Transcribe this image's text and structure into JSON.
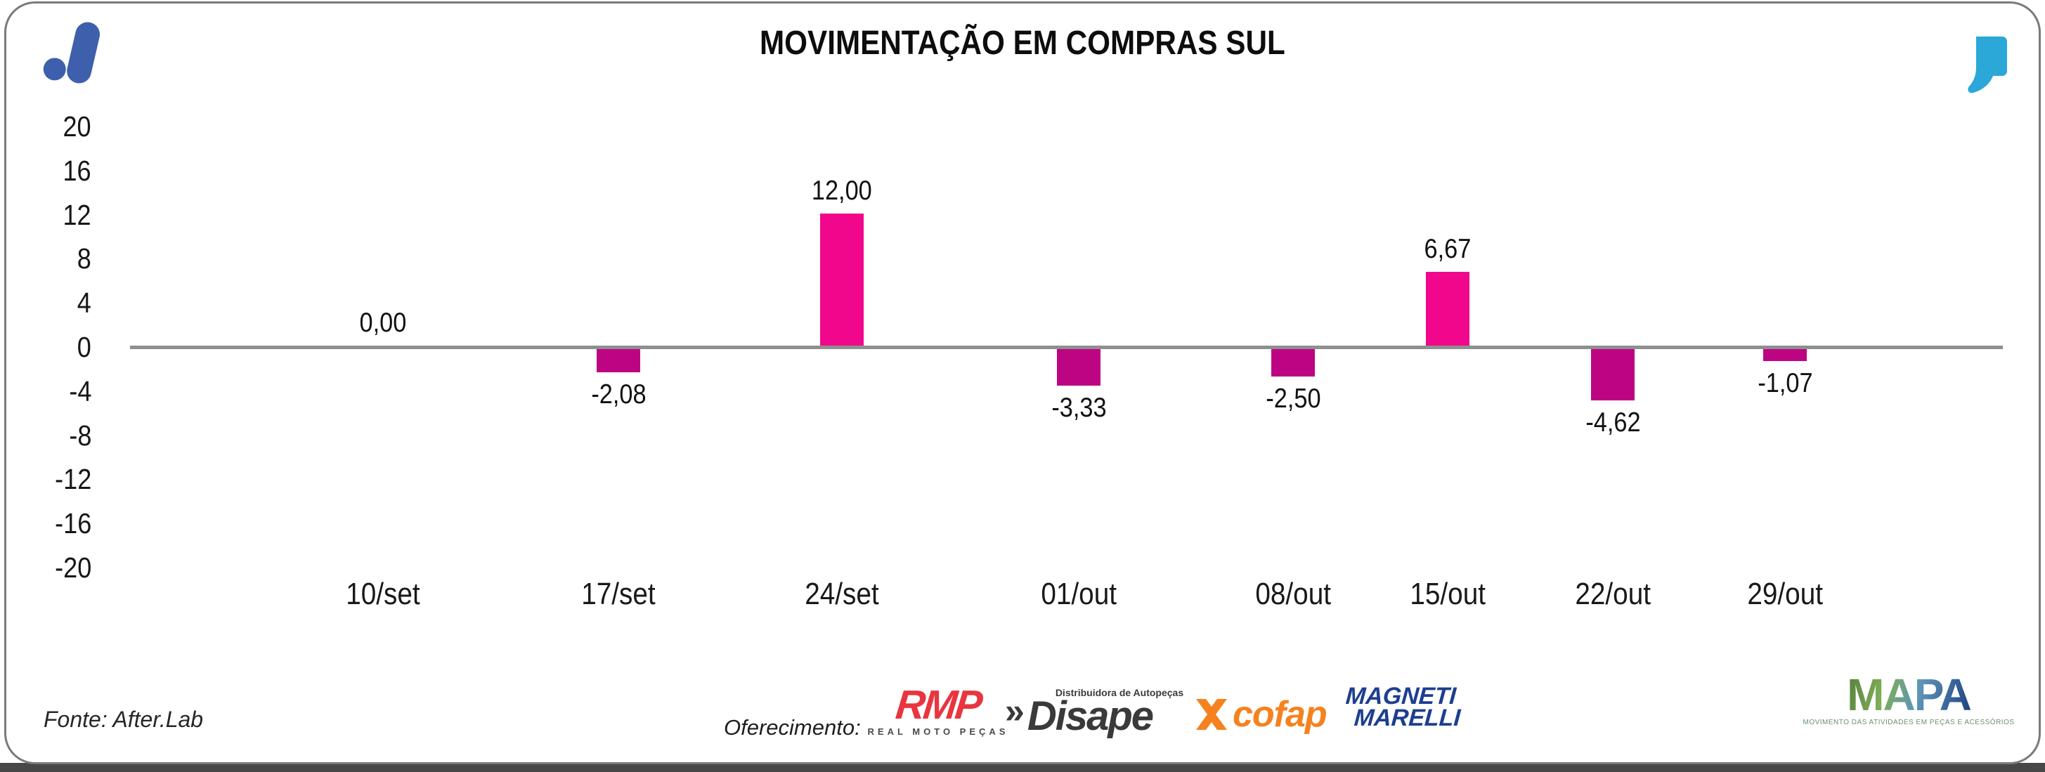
{
  "card": {
    "background": "#ffffff",
    "border_color": "#7a7a7a",
    "bottom_strip_color": "#474747"
  },
  "brand": {
    "afterlab_mark_color": "#3D5FAC",
    "quote_mark_color": "#2BA7D8"
  },
  "chart_data": {
    "type": "bar",
    "title": "MOVIMENTAÇÃO EM COMPRAS SUL",
    "categories": [
      "10/set",
      "17/set",
      "24/set",
      "01/out",
      "08/out",
      "15/out",
      "22/out",
      "29/out"
    ],
    "values": [
      0,
      -2.08,
      12,
      -3.33,
      -2.5,
      6.67,
      -4.62,
      -1.07
    ],
    "value_labels": [
      "0,00",
      "-2,08",
      "12,00",
      "-3,33",
      "-2,50",
      "6,67",
      "-4,62",
      "-1,07"
    ],
    "y_ticks": [
      20,
      16,
      12,
      8,
      4,
      0,
      -4,
      -8,
      -12,
      -16,
      -20
    ],
    "ylim": [
      -20,
      20
    ],
    "xlabel": "",
    "ylabel": "",
    "grid": false,
    "legend_position": "none",
    "bar_color_positive": "#F0078C",
    "bar_color_negative": "#BD0583",
    "axis_line_color": "#8F8F8F",
    "label_color": "#111111"
  },
  "footer": {
    "fonte": "Fonte: After.Lab",
    "oferecimento_label": "Oferecimento:",
    "logos": {
      "rmp": {
        "text": "RMP",
        "subtext": "REAL MOTO PEÇAS",
        "color": "#E8353F"
      },
      "disape": {
        "mark": "»",
        "text": "Disape",
        "subtext": "Distribuidora de Autopeças",
        "color": "#3A3A3A"
      },
      "cofap": {
        "text": "cofap",
        "color": "#F5821F"
      },
      "magneti": {
        "line1": "MAGNETI",
        "line2": "MARELLI",
        "color": "#1D3E90"
      },
      "mapa": {
        "text": "MAPA",
        "tagline": "MOVIMENTO DAS ATIVIDADES EM PEÇAS E ACESSÓRIOS"
      }
    }
  }
}
